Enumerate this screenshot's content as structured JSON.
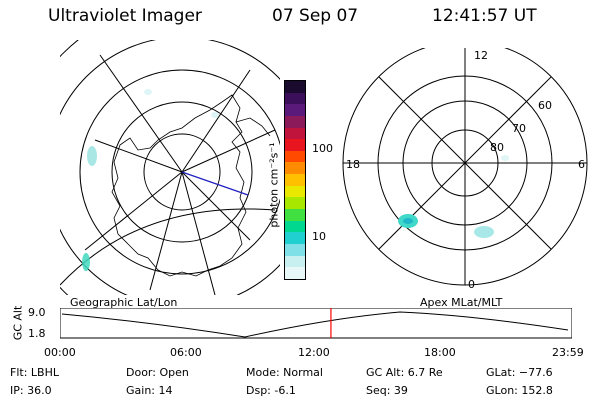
{
  "header": {
    "title": "Ultraviolet Imager",
    "date": "07 Sep 07",
    "time": "12:41:57 UT"
  },
  "colorbar": {
    "unit_label": "photon cm⁻²s⁻¹",
    "ticks": [
      "100",
      "10"
    ],
    "colors": [
      "#1a0a2e",
      "#3b0f5a",
      "#5a1a7a",
      "#8a1a5a",
      "#c0143c",
      "#e8141e",
      "#ff4a00",
      "#ff8c00",
      "#ffc000",
      "#e8e800",
      "#a8e800",
      "#40e040",
      "#00d890",
      "#20d0d0",
      "#80e0e8",
      "#c8f0f0",
      "#e8f8f8"
    ]
  },
  "geo_panel": {
    "label": "Geographic Lat/Lon"
  },
  "polar_panel": {
    "label": "Apex MLat/MLT",
    "mlt_labels": {
      "top": "12",
      "left": "18",
      "right": "6",
      "bottom": "0"
    },
    "lat_labels": [
      "60",
      "70",
      "80"
    ]
  },
  "altitude_plot": {
    "ylabel": "GC Alt",
    "yticks": [
      "9.0",
      "1.8"
    ],
    "xticks": [
      "00:00",
      "06:00",
      "12:00",
      "18:00",
      "23:59"
    ],
    "marker_time_hours": 12.7,
    "marker_color": "#ff0000"
  },
  "info": {
    "filter": "Flt: LBHL",
    "ip": "IP: 36.0",
    "door": "Door: Open",
    "gain": "Gain: 14",
    "mode": "Mode: Normal",
    "dsp": "Dsp:    -6.1",
    "gc_alt": "GC Alt: 6.7 Re",
    "seq": "Seq: 39",
    "glat": "GLat: −77.6",
    "glon": "GLon: 152.8"
  }
}
